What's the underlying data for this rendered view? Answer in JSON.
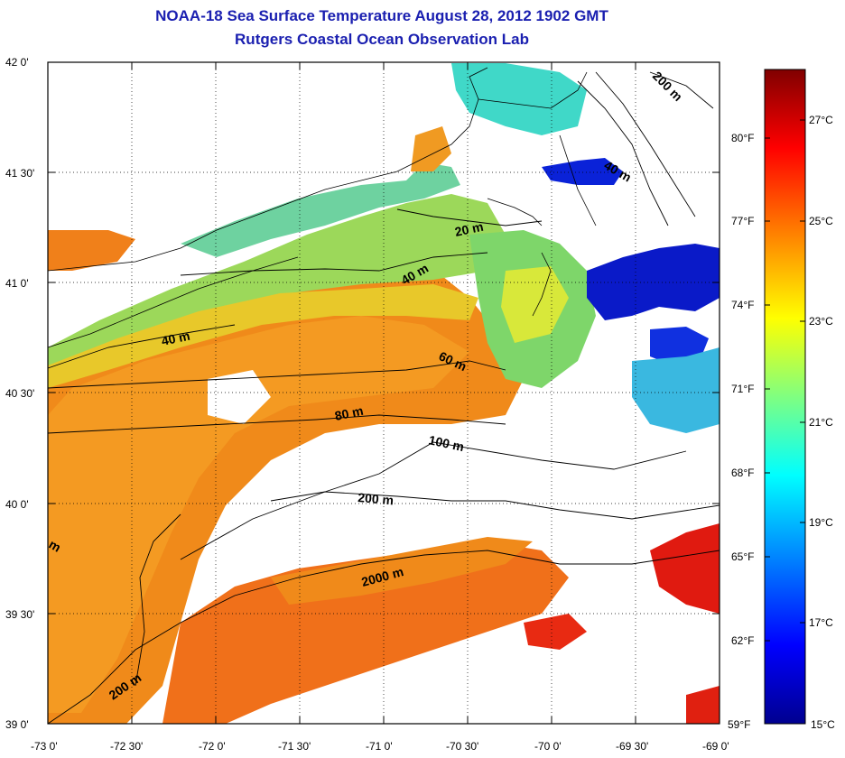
{
  "title": {
    "line1": "NOAA-18 Sea Surface Temperature August 28, 2012 1902 GMT",
    "line2": "Rutgers Coastal Ocean Observation Lab"
  },
  "map": {
    "lon_ticks": [
      "-73 0'",
      "-72 30'",
      "-72 0'",
      "-71 30'",
      "-71 0'",
      "-70 30'",
      "-70 0'",
      "-69 30'",
      "-69 0'"
    ],
    "lat_ticks": [
      "42 0'",
      "41 30'",
      "41 0'",
      "40 30'",
      "40 0'",
      "39 30'",
      "39 0'"
    ],
    "contour_labels": [
      "20 m",
      "40 m",
      "40 m",
      "40 m",
      "60 m",
      "80 m",
      "100 m",
      "200 m",
      "200 m",
      "200 m",
      "2000 m",
      "m"
    ]
  },
  "colorbar": {
    "celsius": [
      "27°C",
      "25°C",
      "23°C",
      "21°C",
      "19°C",
      "17°C",
      "15°C"
    ],
    "fahrenheit": [
      "80°F",
      "77°F",
      "74°F",
      "71°F",
      "68°F",
      "65°F",
      "62°F",
      "59°F"
    ],
    "colors": [
      "#00008f",
      "#0000ff",
      "#0080ff",
      "#00ffff",
      "#80ff80",
      "#ffff00",
      "#ff8000",
      "#ff0000",
      "#800000"
    ]
  },
  "colors": {
    "title": "#1a1fb0",
    "water_warm": "#f08a1a",
    "water_mid": "#f2a820",
    "water_cool": "#7ed66a",
    "water_cold": "#0a1ad0",
    "water_hot": "#e01a10"
  }
}
